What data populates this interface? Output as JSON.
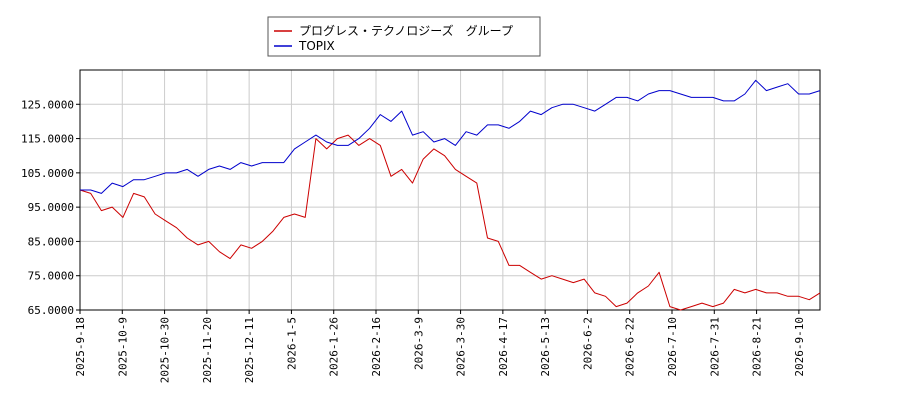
{
  "chart_data": {
    "type": "line",
    "title": "",
    "xlabel": "",
    "ylabel": "",
    "ylim": [
      65,
      135
    ],
    "grid": true,
    "legend_position": "top-center",
    "y_ticks": [
      "65.0000",
      "75.0000",
      "85.0000",
      "95.0000",
      "105.0000",
      "115.0000",
      "125.0000"
    ],
    "x_ticks": [
      "2025-9-18",
      "2025-10-9",
      "2025-10-30",
      "2025-11-20",
      "2025-12-11",
      "2026-1-5",
      "2026-1-26",
      "2026-2-16",
      "2026-3-9",
      "2026-3-30",
      "2026-4-17",
      "2026-5-13",
      "2026-6-2",
      "2026-6-22",
      "2026-7-10",
      "2026-7-31",
      "2026-8-21",
      "2026-9-10"
    ],
    "series": [
      {
        "name": "プログレス・テクノロジーズ　グループ",
        "color": "#cc0000",
        "values": [
          100,
          99,
          94,
          95,
          92,
          99,
          98,
          93,
          91,
          89,
          86,
          84,
          85,
          82,
          80,
          84,
          83,
          85,
          88,
          92,
          93,
          92,
          115,
          112,
          115,
          116,
          113,
          115,
          113,
          104,
          106,
          102,
          109,
          112,
          110,
          106,
          104,
          102,
          86,
          85,
          78,
          78,
          76,
          74,
          75,
          74,
          73,
          74,
          70,
          69,
          66,
          67,
          70,
          72,
          76,
          66,
          65,
          66,
          67,
          66,
          67,
          71,
          70,
          71,
          70,
          70,
          69,
          69,
          68,
          70
        ]
      },
      {
        "name": "TOPIX",
        "color": "#0000cc",
        "values": [
          100,
          100,
          99,
          102,
          101,
          103,
          103,
          104,
          105,
          105,
          106,
          104,
          106,
          107,
          106,
          108,
          107,
          108,
          108,
          108,
          112,
          114,
          116,
          114,
          113,
          113,
          115,
          118,
          122,
          120,
          123,
          116,
          117,
          114,
          115,
          113,
          117,
          116,
          119,
          119,
          118,
          120,
          123,
          122,
          124,
          125,
          125,
          124,
          123,
          125,
          127,
          127,
          126,
          128,
          129,
          129,
          128,
          127,
          127,
          127,
          126,
          126,
          128,
          132,
          129,
          130,
          131,
          128,
          128,
          129
        ]
      }
    ]
  }
}
